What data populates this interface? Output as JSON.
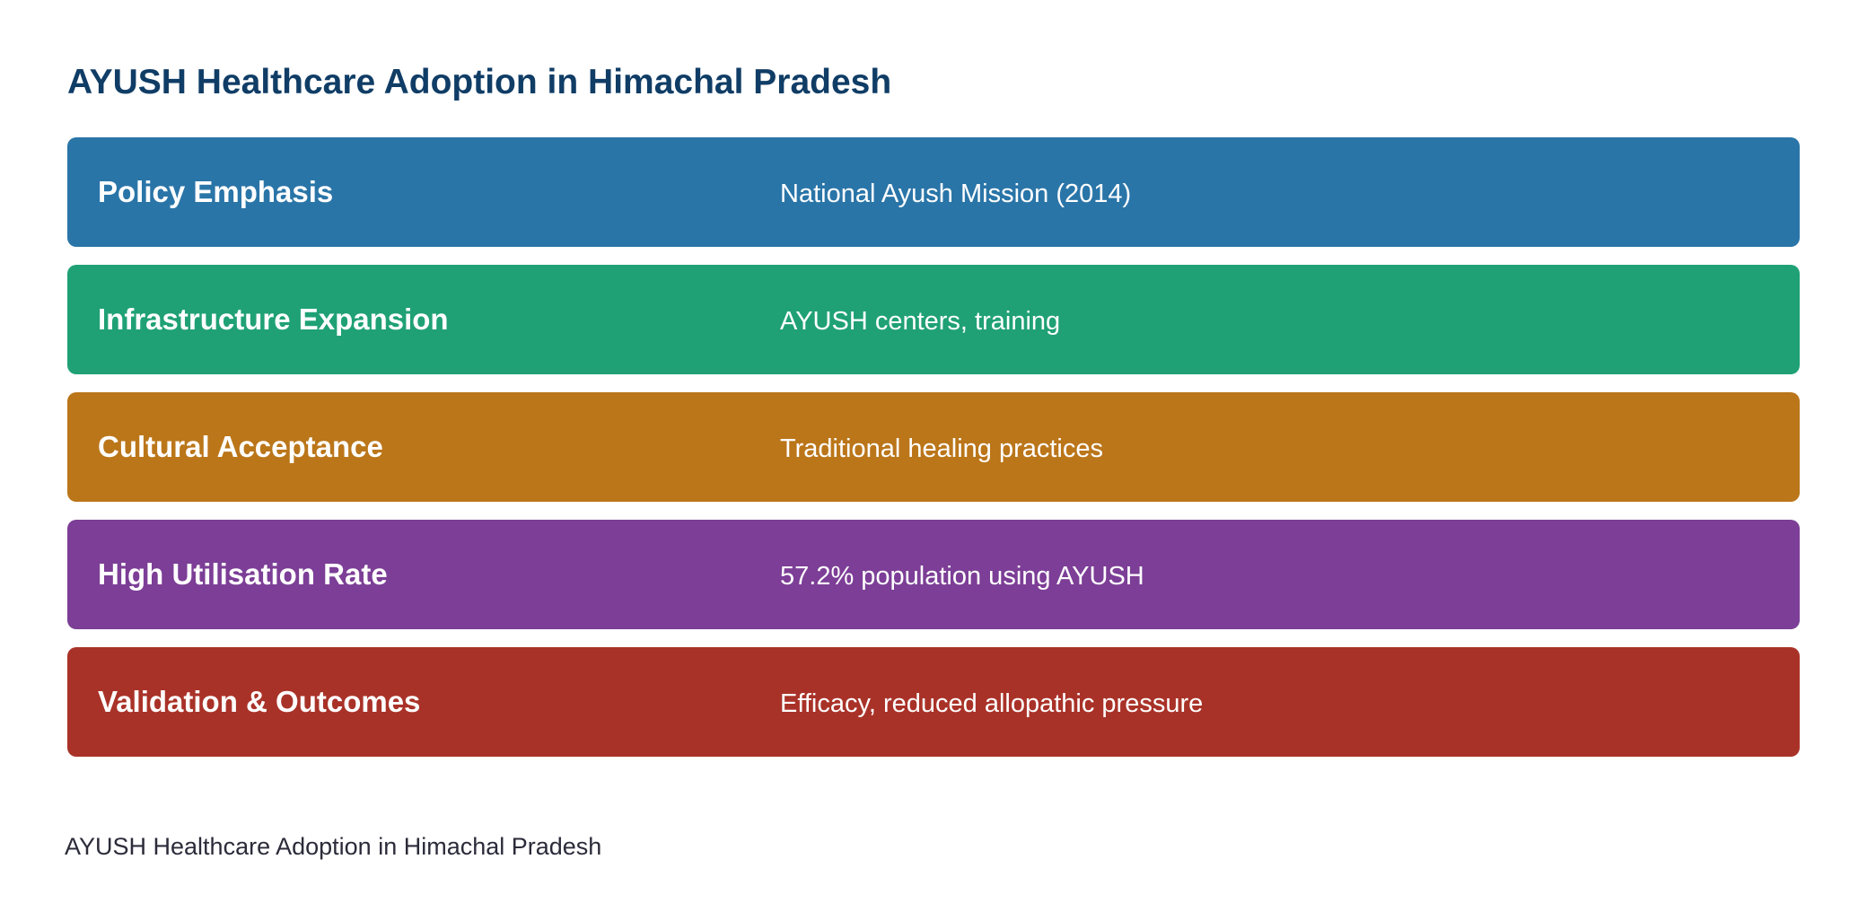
{
  "title": "AYUSH Healthcare Adoption in Himachal Pradesh",
  "rows": [
    {
      "label": "Policy Emphasis",
      "detail": "National Ayush Mission (2014)",
      "color": "#2a75a8"
    },
    {
      "label": "Infrastructure Expansion",
      "detail": "AYUSH centers, training",
      "color": "#1fa175"
    },
    {
      "label": "Cultural Acceptance",
      "detail": "Traditional healing practices",
      "color": "#bb761a"
    },
    {
      "label": "High Utilisation Rate",
      "detail": "57.2% population using AYUSH",
      "color": "#7c3e96"
    },
    {
      "label": "Validation & Outcomes",
      "detail": "Efficacy, reduced allopathic pressure",
      "color": "#a93228"
    }
  ],
  "caption": "AYUSH Healthcare Adoption in Himachal Pradesh"
}
